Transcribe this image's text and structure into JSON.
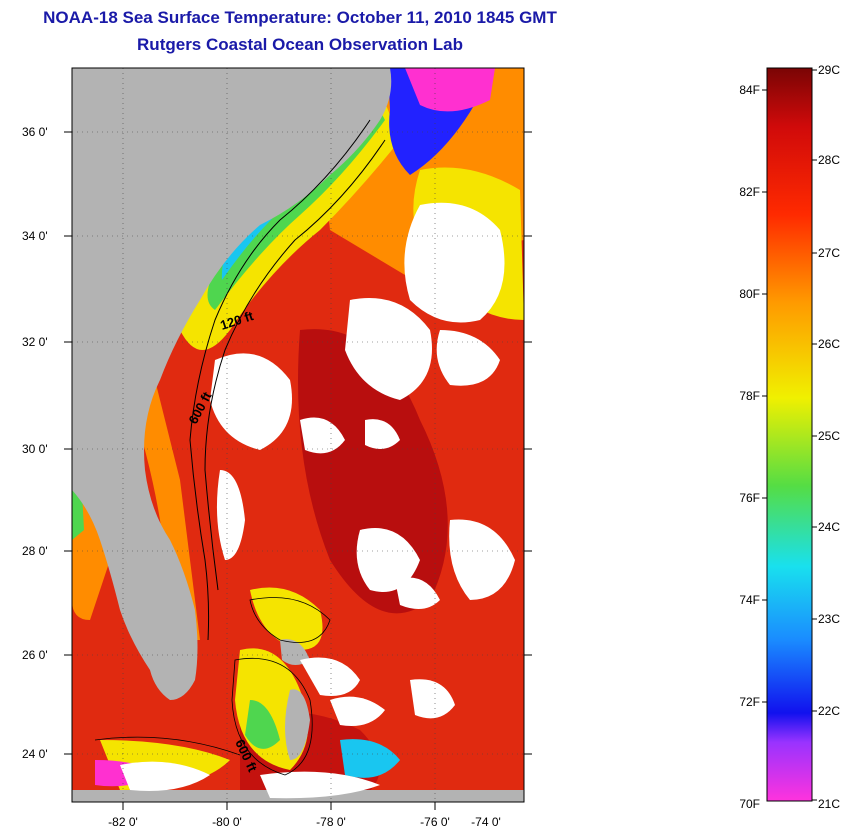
{
  "title": {
    "line1": "NOAA-18 Sea Surface Temperature:  October 11, 2010 1845 GMT",
    "line2": "Rutgers Coastal Ocean Observation Lab"
  },
  "map": {
    "lon_ticks": [
      "-82 0'",
      "-80 0'",
      "-78 0'",
      "-76 0'",
      "-74 0'"
    ],
    "lat_ticks": [
      "36 0'",
      "34 0'",
      "32 0'",
      "30 0'",
      "28 0'",
      "26 0'",
      "24 0'"
    ],
    "contour_labels": [
      "120 ft",
      "600 ft",
      "600 ft"
    ],
    "colors": {
      "land": "#b3b3b3",
      "cloud": "#ffffff",
      "warm": "#e02a10",
      "hot": "#b80e0e",
      "mid": "#ff8c00",
      "yellow": "#f5e400",
      "green": "#4fd64f",
      "cyan": "#19c6f0",
      "blue": "#2222ff",
      "magenta": "#ff30d0"
    }
  },
  "colorbar": {
    "fahrenheit_labels": [
      "84F",
      "82F",
      "80F",
      "78F",
      "76F",
      "74F",
      "72F",
      "70F"
    ],
    "celsius_labels": [
      "29C",
      "28C",
      "27C",
      "26C",
      "25C",
      "24C",
      "23C",
      "22C",
      "21C"
    ]
  }
}
